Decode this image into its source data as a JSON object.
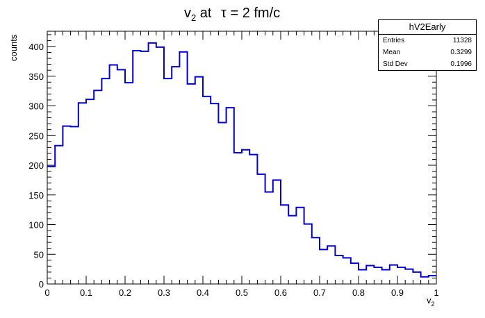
{
  "chart_data": {
    "type": "histogram",
    "title_main": "v",
    "title_sub": "2",
    "title_rest": " at",
    "title_tau": "τ = 2 fm/c",
    "xlabel_main": "v",
    "xlabel_sub": "2",
    "ylabel": "counts",
    "xlim": [
      0,
      1
    ],
    "ylim": [
      0,
      430
    ],
    "bin_width": 0.02,
    "bin_edges_start": 0,
    "values": [
      198,
      233,
      266,
      265,
      305,
      311,
      326,
      346,
      369,
      361,
      339,
      393,
      392,
      406,
      399,
      346,
      366,
      391,
      337,
      349,
      316,
      304,
      272,
      297,
      221,
      226,
      218,
      185,
      155,
      175,
      133,
      115,
      129,
      101,
      78,
      58,
      64,
      48,
      44,
      35,
      24,
      31,
      28,
      24,
      32,
      28,
      25,
      20,
      12,
      14
    ],
    "xticks": [
      "0",
      "0.1",
      "0.2",
      "0.3",
      "0.4",
      "0.5",
      "0.6",
      "0.7",
      "0.8",
      "0.9",
      "1"
    ],
    "yticks": [
      "0",
      "50",
      "100",
      "150",
      "200",
      "250",
      "300",
      "350",
      "400"
    ],
    "line_color": "#0000d4",
    "stats": {
      "name": "hV2Early",
      "rows": [
        {
          "label": "Entries",
          "value": "11328"
        },
        {
          "label": "Mean",
          "value": "0.3299"
        },
        {
          "label": "Std Dev",
          "value": "0.1996"
        }
      ]
    }
  }
}
